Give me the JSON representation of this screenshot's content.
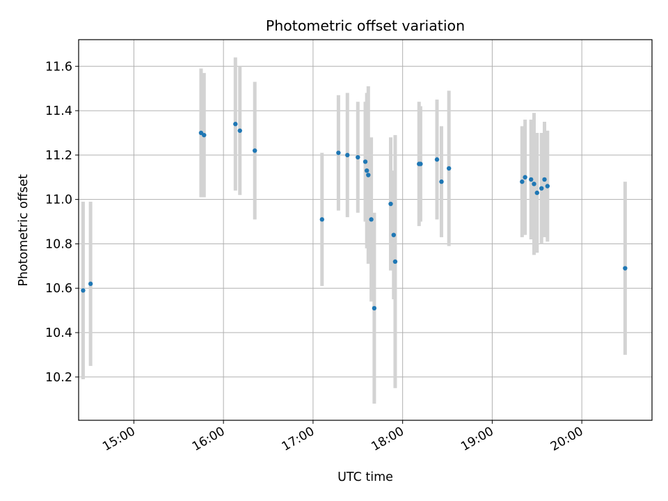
{
  "chart_data": {
    "type": "scatter",
    "title": "Photometric offset variation",
    "xlabel": "UTC time",
    "ylabel": "Photometric offset",
    "x_axis_kind": "time",
    "xlim": [
      "14:23",
      "20:47"
    ],
    "ylim": [
      10.005,
      11.72
    ],
    "grid": true,
    "legend": "none",
    "x_tick_labels": [
      "15:00",
      "16:00",
      "17:00",
      "18:00",
      "19:00",
      "20:00"
    ],
    "y_tick_labels": [
      "10.2",
      "10.4",
      "10.6",
      "10.8",
      "11.0",
      "11.2",
      "11.4",
      "11.6"
    ],
    "colors": {
      "marker": "#1f77b4",
      "error_bar": "#d3d3d3",
      "grid": "#b0b0b0"
    },
    "series": [
      {
        "points": [
          {
            "x": "14:26",
            "y": 10.59,
            "err": 0.4
          },
          {
            "x": "14:31",
            "y": 10.62,
            "err": 0.37
          },
          {
            "x": "15:45",
            "y": 11.3,
            "err": 0.29
          },
          {
            "x": "15:47",
            "y": 11.29,
            "err": 0.28
          },
          {
            "x": "16:08",
            "y": 11.34,
            "err": 0.3
          },
          {
            "x": "16:11",
            "y": 11.31,
            "err": 0.29
          },
          {
            "x": "16:21",
            "y": 11.22,
            "err": 0.31
          },
          {
            "x": "17:06",
            "y": 10.91,
            "err": 0.3
          },
          {
            "x": "17:17",
            "y": 11.21,
            "err": 0.26
          },
          {
            "x": "17:23",
            "y": 11.2,
            "err": 0.28
          },
          {
            "x": "17:30",
            "y": 11.19,
            "err": 0.25
          },
          {
            "x": "17:35",
            "y": 11.17,
            "err": 0.27
          },
          {
            "x": "17:36",
            "y": 11.13,
            "err": 0.35
          },
          {
            "x": "17:37",
            "y": 11.11,
            "err": 0.4
          },
          {
            "x": "17:39",
            "y": 10.91,
            "err": 0.37
          },
          {
            "x": "17:41",
            "y": 10.51,
            "err": 0.43
          },
          {
            "x": "17:52",
            "y": 10.98,
            "err": 0.3
          },
          {
            "x": "17:54",
            "y": 10.84,
            "err": 0.29
          },
          {
            "x": "17:55",
            "y": 10.72,
            "err": 0.57
          },
          {
            "x": "18:11",
            "y": 11.16,
            "err": 0.28
          },
          {
            "x": "18:12",
            "y": 11.16,
            "err": 0.26
          },
          {
            "x": "18:23",
            "y": 11.18,
            "err": 0.27
          },
          {
            "x": "18:26",
            "y": 11.08,
            "err": 0.25
          },
          {
            "x": "18:31",
            "y": 11.14,
            "err": 0.35
          },
          {
            "x": "19:20",
            "y": 11.08,
            "err": 0.25
          },
          {
            "x": "19:22",
            "y": 11.1,
            "err": 0.26
          },
          {
            "x": "19:26",
            "y": 11.09,
            "err": 0.27
          },
          {
            "x": "19:28",
            "y": 11.07,
            "err": 0.32
          },
          {
            "x": "19:30",
            "y": 11.03,
            "err": 0.27
          },
          {
            "x": "19:33",
            "y": 11.05,
            "err": 0.25
          },
          {
            "x": "19:35",
            "y": 11.09,
            "err": 0.26
          },
          {
            "x": "19:37",
            "y": 11.06,
            "err": 0.25
          },
          {
            "x": "20:29",
            "y": 10.69,
            "err": 0.39
          }
        ]
      }
    ]
  }
}
